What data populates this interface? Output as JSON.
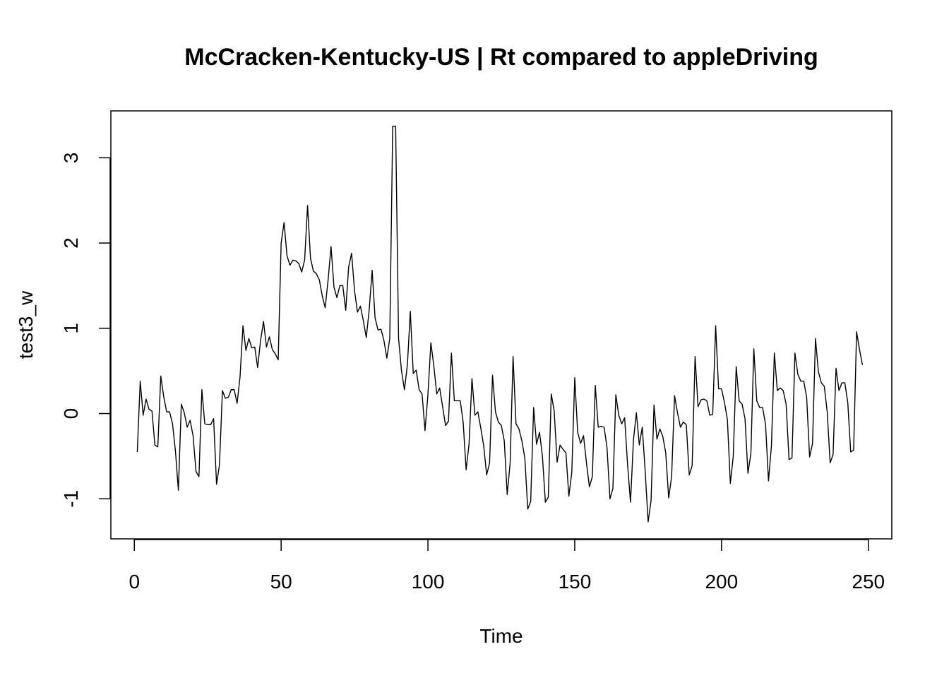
{
  "chart_data": {
    "type": "line",
    "title": "McCracken-Kentucky-US | Rt compared to appleDriving",
    "xlabel": "Time",
    "ylabel": "test3_w",
    "xlim": [
      -8,
      258
    ],
    "ylim": [
      -1.47,
      3.55
    ],
    "x_ticks": [
      0,
      50,
      100,
      150,
      200,
      250
    ],
    "y_ticks": [
      -1,
      0,
      1,
      2,
      3
    ],
    "grid": false,
    "legend": "none",
    "line_color": "#000000",
    "series": [
      {
        "x_start": 1,
        "values": [
          -0.45,
          0.38,
          -0.02,
          0.17,
          0.05,
          0.03,
          -0.37,
          -0.39,
          0.44,
          0.2,
          0.02,
          0.02,
          -0.12,
          -0.44,
          -0.9,
          0.11,
          0.01,
          -0.16,
          -0.08,
          -0.26,
          -0.68,
          -0.74,
          0.28,
          -0.12,
          -0.13,
          -0.13,
          -0.06,
          -0.83,
          -0.6,
          0.27,
          0.18,
          0.19,
          0.28,
          0.28,
          0.12,
          0.43,
          1.03,
          0.74,
          0.88,
          0.77,
          0.78,
          0.54,
          0.86,
          1.08,
          0.78,
          0.9,
          0.75,
          0.7,
          0.63,
          2.0,
          2.24,
          1.85,
          1.74,
          1.8,
          1.79,
          1.76,
          1.66,
          1.8,
          2.44,
          1.82,
          1.67,
          1.64,
          1.57,
          1.38,
          1.24,
          1.57,
          1.96,
          1.48,
          1.36,
          1.5,
          1.5,
          1.21,
          1.72,
          1.88,
          1.44,
          1.19,
          1.26,
          1.09,
          0.89,
          1.22,
          1.68,
          1.12,
          0.98,
          0.99,
          0.86,
          0.65,
          0.88,
          3.37,
          3.37,
          0.88,
          0.5,
          0.28,
          0.57,
          1.2,
          0.47,
          0.51,
          0.28,
          0.23,
          -0.2,
          0.22,
          0.83,
          0.56,
          0.23,
          0.3,
          0.08,
          -0.14,
          -0.09,
          0.71,
          0.15,
          0.15,
          0.15,
          -0.1,
          -0.66,
          -0.36,
          0.41,
          -0.02,
          0.02,
          -0.17,
          -0.38,
          -0.72,
          -0.58,
          0.45,
          0.02,
          -0.1,
          -0.14,
          -0.32,
          -0.95,
          -0.58,
          0.67,
          -0.12,
          -0.18,
          -0.32,
          -0.52,
          -1.12,
          -1.03,
          0.07,
          -0.36,
          -0.22,
          -0.5,
          -1.04,
          -0.98,
          0.23,
          0.03,
          -0.57,
          -0.37,
          -0.42,
          -0.46,
          -0.97,
          -0.69,
          0.42,
          -0.22,
          -0.35,
          -0.26,
          -0.58,
          -0.86,
          -0.74,
          0.33,
          -0.16,
          -0.15,
          -0.16,
          -0.4,
          -1.0,
          -0.88,
          0.22,
          -0.02,
          -0.12,
          -0.05,
          -0.6,
          -1.04,
          -0.31,
          0.01,
          -0.37,
          -0.16,
          -0.68,
          -1.27,
          -1.02,
          0.1,
          -0.3,
          -0.18,
          -0.27,
          -0.46,
          -0.99,
          -0.74,
          0.21,
          0.01,
          -0.16,
          -0.1,
          -0.13,
          -0.72,
          -0.61,
          0.67,
          0.08,
          0.16,
          0.17,
          0.15,
          -0.02,
          -0.01,
          1.03,
          0.29,
          0.29,
          0.13,
          -0.07,
          -0.82,
          -0.5,
          0.55,
          0.15,
          0.11,
          -0.06,
          -0.7,
          -0.47,
          0.76,
          0.15,
          0.07,
          0.07,
          -0.13,
          -0.79,
          -0.38,
          0.71,
          0.27,
          0.3,
          0.27,
          0.11,
          -0.54,
          -0.52,
          0.71,
          0.46,
          0.38,
          0.38,
          0.19,
          -0.51,
          -0.35,
          0.88,
          0.49,
          0.36,
          0.32,
          0.02,
          -0.58,
          -0.48,
          0.53,
          0.27,
          0.36,
          0.36,
          0.13,
          -0.45,
          -0.43,
          0.96,
          0.75,
          0.57
        ]
      }
    ]
  }
}
